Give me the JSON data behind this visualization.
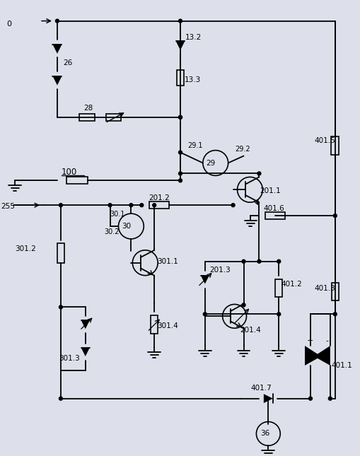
{
  "bg_color": "#dde0ea",
  "line_color": "#000000",
  "figsize": [
    5.1,
    6.45
  ],
  "dpi": 100,
  "label_color": "#3333aa"
}
